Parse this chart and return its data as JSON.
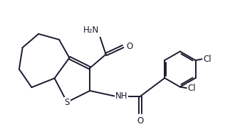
{
  "bg_color": "#ffffff",
  "line_color": "#1a1a2e",
  "line_width": 1.4,
  "text_color": "#1a1a2e",
  "fontsize": 8.5,
  "fig_width": 3.23,
  "fig_height": 1.96,
  "dpi": 100,
  "xlim": [
    0,
    10
  ],
  "ylim": [
    0,
    6.07
  ]
}
